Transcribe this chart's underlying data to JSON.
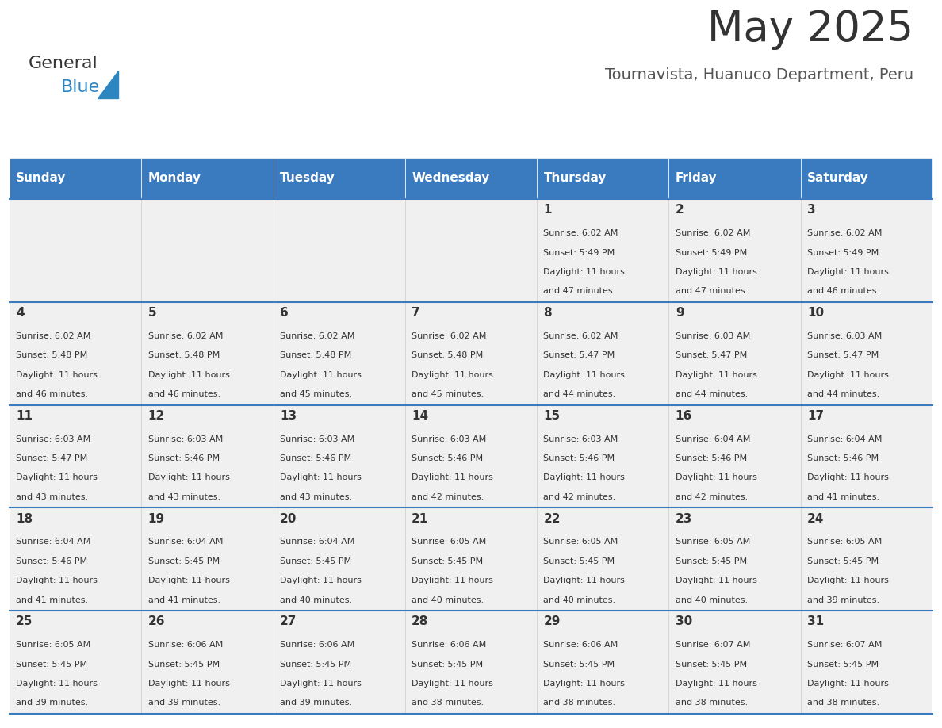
{
  "title": "May 2025",
  "subtitle": "Tournavista, Huanuco Department, Peru",
  "days_of_week": [
    "Sunday",
    "Monday",
    "Tuesday",
    "Wednesday",
    "Thursday",
    "Friday",
    "Saturday"
  ],
  "header_bg": "#3a7abf",
  "header_text": "#ffffff",
  "cell_bg_light": "#f0f0f0",
  "cell_text": "#333333",
  "border_color": "#3a7abf",
  "title_color": "#333333",
  "subtitle_color": "#555555",
  "logo_general_color": "#333333",
  "logo_blue_color": "#2e86c1",
  "weeks": [
    [
      {
        "day": null,
        "sunrise": null,
        "sunset": null,
        "daylight": null
      },
      {
        "day": null,
        "sunrise": null,
        "sunset": null,
        "daylight": null
      },
      {
        "day": null,
        "sunrise": null,
        "sunset": null,
        "daylight": null
      },
      {
        "day": null,
        "sunrise": null,
        "sunset": null,
        "daylight": null
      },
      {
        "day": 1,
        "sunrise": "6:02 AM",
        "sunset": "5:49 PM",
        "daylight": "11 hours and 47 minutes."
      },
      {
        "day": 2,
        "sunrise": "6:02 AM",
        "sunset": "5:49 PM",
        "daylight": "11 hours and 47 minutes."
      },
      {
        "day": 3,
        "sunrise": "6:02 AM",
        "sunset": "5:49 PM",
        "daylight": "11 hours and 46 minutes."
      }
    ],
    [
      {
        "day": 4,
        "sunrise": "6:02 AM",
        "sunset": "5:48 PM",
        "daylight": "11 hours and 46 minutes."
      },
      {
        "day": 5,
        "sunrise": "6:02 AM",
        "sunset": "5:48 PM",
        "daylight": "11 hours and 46 minutes."
      },
      {
        "day": 6,
        "sunrise": "6:02 AM",
        "sunset": "5:48 PM",
        "daylight": "11 hours and 45 minutes."
      },
      {
        "day": 7,
        "sunrise": "6:02 AM",
        "sunset": "5:48 PM",
        "daylight": "11 hours and 45 minutes."
      },
      {
        "day": 8,
        "sunrise": "6:02 AM",
        "sunset": "5:47 PM",
        "daylight": "11 hours and 44 minutes."
      },
      {
        "day": 9,
        "sunrise": "6:03 AM",
        "sunset": "5:47 PM",
        "daylight": "11 hours and 44 minutes."
      },
      {
        "day": 10,
        "sunrise": "6:03 AM",
        "sunset": "5:47 PM",
        "daylight": "11 hours and 44 minutes."
      }
    ],
    [
      {
        "day": 11,
        "sunrise": "6:03 AM",
        "sunset": "5:47 PM",
        "daylight": "11 hours and 43 minutes."
      },
      {
        "day": 12,
        "sunrise": "6:03 AM",
        "sunset": "5:46 PM",
        "daylight": "11 hours and 43 minutes."
      },
      {
        "day": 13,
        "sunrise": "6:03 AM",
        "sunset": "5:46 PM",
        "daylight": "11 hours and 43 minutes."
      },
      {
        "day": 14,
        "sunrise": "6:03 AM",
        "sunset": "5:46 PM",
        "daylight": "11 hours and 42 minutes."
      },
      {
        "day": 15,
        "sunrise": "6:03 AM",
        "sunset": "5:46 PM",
        "daylight": "11 hours and 42 minutes."
      },
      {
        "day": 16,
        "sunrise": "6:04 AM",
        "sunset": "5:46 PM",
        "daylight": "11 hours and 42 minutes."
      },
      {
        "day": 17,
        "sunrise": "6:04 AM",
        "sunset": "5:46 PM",
        "daylight": "11 hours and 41 minutes."
      }
    ],
    [
      {
        "day": 18,
        "sunrise": "6:04 AM",
        "sunset": "5:46 PM",
        "daylight": "11 hours and 41 minutes."
      },
      {
        "day": 19,
        "sunrise": "6:04 AM",
        "sunset": "5:45 PM",
        "daylight": "11 hours and 41 minutes."
      },
      {
        "day": 20,
        "sunrise": "6:04 AM",
        "sunset": "5:45 PM",
        "daylight": "11 hours and 40 minutes."
      },
      {
        "day": 21,
        "sunrise": "6:05 AM",
        "sunset": "5:45 PM",
        "daylight": "11 hours and 40 minutes."
      },
      {
        "day": 22,
        "sunrise": "6:05 AM",
        "sunset": "5:45 PM",
        "daylight": "11 hours and 40 minutes."
      },
      {
        "day": 23,
        "sunrise": "6:05 AM",
        "sunset": "5:45 PM",
        "daylight": "11 hours and 40 minutes."
      },
      {
        "day": 24,
        "sunrise": "6:05 AM",
        "sunset": "5:45 PM",
        "daylight": "11 hours and 39 minutes."
      }
    ],
    [
      {
        "day": 25,
        "sunrise": "6:05 AM",
        "sunset": "5:45 PM",
        "daylight": "11 hours and 39 minutes."
      },
      {
        "day": 26,
        "sunrise": "6:06 AM",
        "sunset": "5:45 PM",
        "daylight": "11 hours and 39 minutes."
      },
      {
        "day": 27,
        "sunrise": "6:06 AM",
        "sunset": "5:45 PM",
        "daylight": "11 hours and 39 minutes."
      },
      {
        "day": 28,
        "sunrise": "6:06 AM",
        "sunset": "5:45 PM",
        "daylight": "11 hours and 38 minutes."
      },
      {
        "day": 29,
        "sunrise": "6:06 AM",
        "sunset": "5:45 PM",
        "daylight": "11 hours and 38 minutes."
      },
      {
        "day": 30,
        "sunrise": "6:07 AM",
        "sunset": "5:45 PM",
        "daylight": "11 hours and 38 minutes."
      },
      {
        "day": 31,
        "sunrise": "6:07 AM",
        "sunset": "5:45 PM",
        "daylight": "11 hours and 38 minutes."
      }
    ]
  ]
}
